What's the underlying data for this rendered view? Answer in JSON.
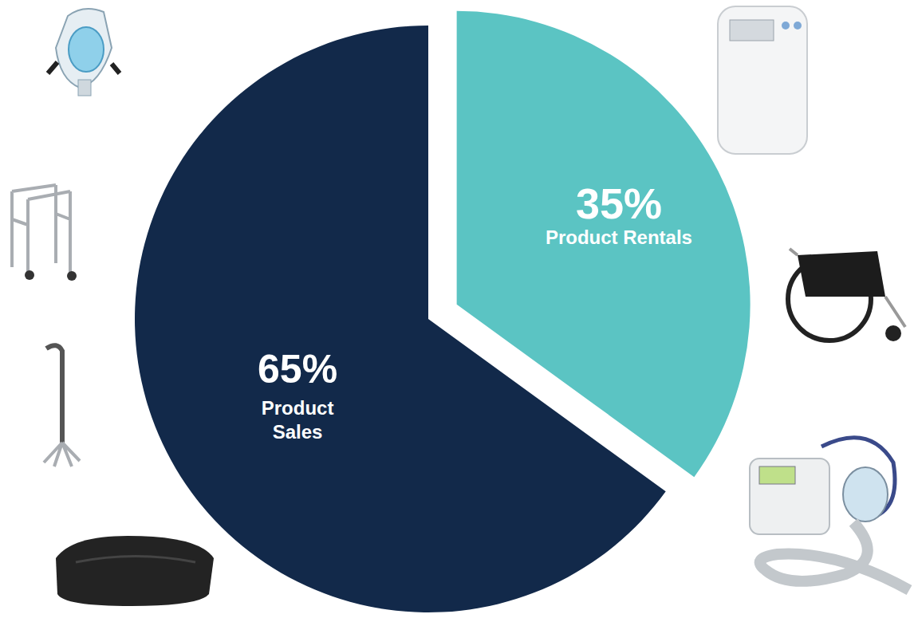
{
  "chart_data": {
    "type": "pie",
    "categories": [
      "Product Rentals",
      "Product Sales"
    ],
    "values": [
      35,
      65
    ],
    "value_labels": [
      "35%",
      "65%"
    ],
    "colors": [
      "#5bc4c3",
      "#12294a"
    ],
    "data_labels": true
  }
}
